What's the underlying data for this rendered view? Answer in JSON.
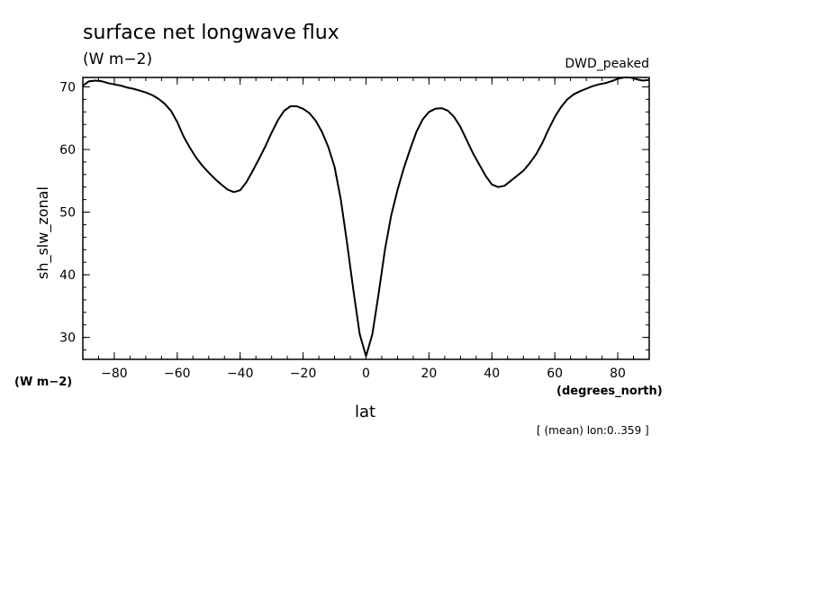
{
  "page": {
    "title": "surface net longwave flux",
    "units": "(W m−2)",
    "dataset": "DWD_peaked",
    "y_units": "(W m−2)",
    "x_units": "(degrees_north)",
    "footnote": "[ (mean) lon:0..359 ]"
  },
  "chart_data": {
    "type": "line",
    "title": "surface net longwave flux",
    "xlabel": "lat",
    "ylabel": "sh_slw_zonal",
    "xlim": [
      -90,
      90
    ],
    "ylim": [
      26.5,
      71.5
    ],
    "xticks": [
      -80,
      -60,
      -40,
      -20,
      0,
      20,
      40,
      60,
      80
    ],
    "yticks": [
      30,
      40,
      50,
      60,
      70
    ],
    "x_tick_labels": [
      "−80",
      "−60",
      "−40",
      "−20",
      "0",
      "20",
      "40",
      "60",
      "80"
    ],
    "y_tick_labels": [
      "30",
      "40",
      "50",
      "60",
      "70"
    ],
    "grid": false,
    "line_color": "#000000",
    "series": [
      {
        "x": [
          -90,
          -88,
          -86,
          -84,
          -82,
          -80,
          -78,
          -76,
          -74,
          -72,
          -70,
          -68,
          -66,
          -64,
          -62,
          -60,
          -58,
          -56,
          -54,
          -52,
          -50,
          -48,
          -46,
          -44,
          -42,
          -40,
          -38,
          -36,
          -34,
          -32,
          -30,
          -28,
          -26,
          -24,
          -22,
          -20,
          -18,
          -16,
          -14,
          -12,
          -10,
          -8,
          -6,
          -4,
          -2,
          0,
          2,
          4,
          6,
          8,
          10,
          12,
          14,
          16,
          18,
          20,
          22,
          24,
          26,
          28,
          30,
          32,
          34,
          36,
          38,
          40,
          42,
          44,
          46,
          48,
          50,
          52,
          54,
          56,
          58,
          60,
          62,
          64,
          66,
          68,
          70,
          72,
          74,
          76,
          78,
          80,
          82,
          84,
          86,
          88,
          90
        ],
        "y": [
          70.2,
          70.9,
          71.0,
          70.9,
          70.6,
          70.4,
          70.2,
          69.9,
          69.7,
          69.4,
          69.1,
          68.7,
          68.1,
          67.3,
          66.2,
          64.4,
          62.1,
          60.3,
          58.7,
          57.4,
          56.3,
          55.3,
          54.4,
          53.6,
          53.2,
          53.5,
          54.8,
          56.6,
          58.5,
          60.5,
          62.7,
          64.7,
          66.2,
          66.9,
          66.9,
          66.5,
          65.8,
          64.6,
          62.8,
          60.4,
          57.2,
          52.0,
          45.0,
          37.5,
          30.5,
          27.0,
          30.5,
          37.0,
          44.0,
          49.5,
          53.5,
          57.0,
          60.0,
          62.8,
          64.8,
          66.0,
          66.5,
          66.6,
          66.2,
          65.2,
          63.6,
          61.5,
          59.4,
          57.6,
          55.8,
          54.4,
          54.0,
          54.2,
          55.0,
          55.8,
          56.6,
          57.8,
          59.2,
          61.0,
          63.2,
          65.2,
          66.8,
          68.0,
          68.8,
          69.3,
          69.7,
          70.1,
          70.4,
          70.6,
          70.9,
          71.3,
          71.5,
          71.5,
          71.2,
          71.0,
          71.1
        ]
      }
    ]
  }
}
